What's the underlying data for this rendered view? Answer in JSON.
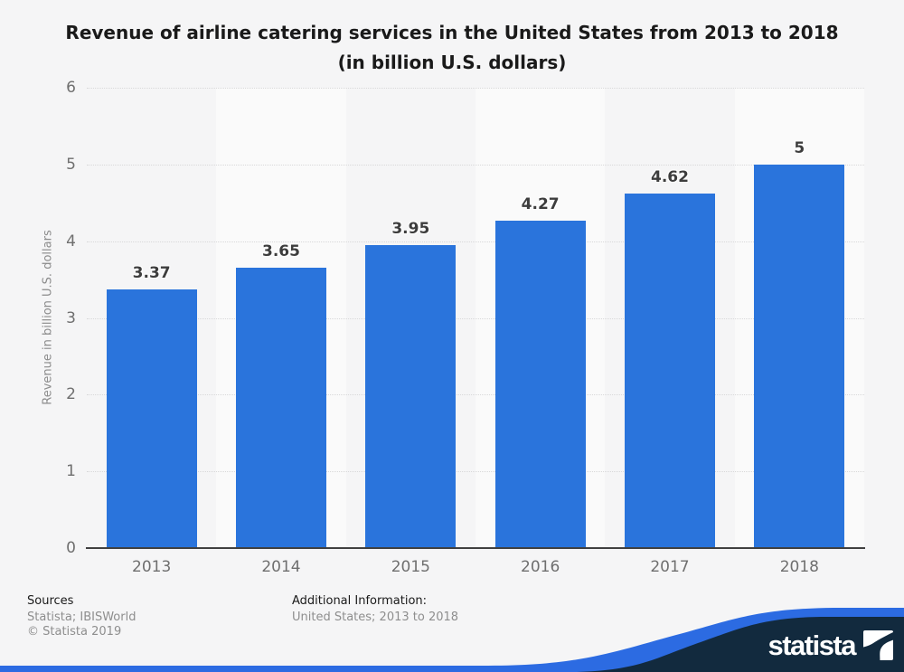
{
  "title": {
    "line1": "Revenue of airline catering services in the United States from 2013 to 2018",
    "line2": "(in billion U.S. dollars)"
  },
  "chart_data": {
    "type": "bar",
    "title": "Revenue of airline catering services in the United States from 2013 to 2018 (in billion U.S. dollars)",
    "categories": [
      "2013",
      "2014",
      "2015",
      "2016",
      "2017",
      "2018"
    ],
    "values": [
      3.37,
      3.65,
      3.95,
      4.27,
      4.62,
      5
    ],
    "value_labels": [
      "3.37",
      "3.65",
      "3.95",
      "4.27",
      "4.62",
      "5"
    ],
    "xlabel": "",
    "ylabel": "Revenue in billion U.S. dollars",
    "ylim": [
      0,
      6
    ],
    "yticks": [
      0,
      1,
      2,
      3,
      4,
      5,
      6
    ],
    "grid": "horizontal-dotted",
    "legend": "none",
    "bar_color": "#2a74dc"
  },
  "footer": {
    "sources_label": "Sources",
    "sources_value": "Statista; IBISWorld",
    "copyright": "© Statista 2019",
    "additional_label": "Additional Information:",
    "additional_value": "United States; 2013 to 2018"
  },
  "branding": {
    "logo_text": "statista",
    "banner_blue": "#2c6be2",
    "banner_navy": "#122a3e"
  },
  "colors": {
    "page_background": "#f5f5f6",
    "alt_column_band": "#fafafa",
    "gridline": "#d8d8d9",
    "axis_line": "#404040",
    "tick_text": "#6f6f6f",
    "bar_value_text": "#3d3d3d",
    "title_text": "#1a1a1a",
    "footer_muted_text": "#8e8e8e"
  }
}
